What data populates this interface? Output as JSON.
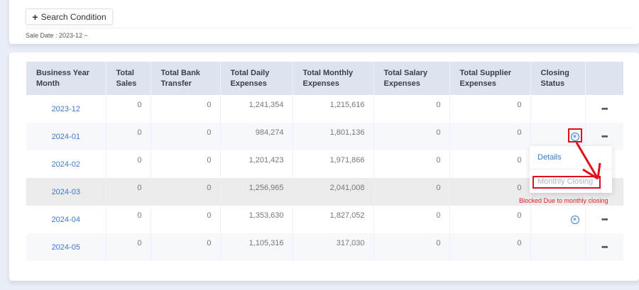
{
  "search": {
    "button_label": "Search Condition",
    "button_icon": "plus-icon",
    "filter_text": "Sale Date : 2023-12 ~"
  },
  "table": {
    "headers": [
      [
        "Business Year",
        "Month"
      ],
      [
        "Total",
        "Sales"
      ],
      [
        "Total Bank",
        "Transfer"
      ],
      [
        "Total Daily",
        "Expenses"
      ],
      [
        "Total Monthly",
        "Expenses"
      ],
      [
        "Total Salary",
        "Expenses"
      ],
      [
        "Total Supplier",
        "Expenses"
      ],
      [
        "Closing",
        "Status"
      ],
      [
        "",
        ""
      ]
    ],
    "rows": [
      {
        "month": "2023-12",
        "sales": "0",
        "bank": "0",
        "daily": "1,241,354",
        "monthly": "1,215,616",
        "salary": "0",
        "supplier": "0",
        "closed": false,
        "more": "•••"
      },
      {
        "month": "2024-01",
        "sales": "0",
        "bank": "0",
        "daily": "984,274",
        "monthly": "1,801,136",
        "salary": "0",
        "supplier": "0",
        "closed": true,
        "more": "•••"
      },
      {
        "month": "2024-02",
        "sales": "0",
        "bank": "0",
        "daily": "1,201,423",
        "monthly": "1,971,866",
        "salary": "0",
        "supplier": "0",
        "closed": false,
        "more": ""
      },
      {
        "month": "2024-03",
        "sales": "0",
        "bank": "0",
        "daily": "1,256,965",
        "monthly": "2,041,008",
        "salary": "0",
        "supplier": "0",
        "closed": false,
        "more": ""
      },
      {
        "month": "2024-04",
        "sales": "0",
        "bank": "0",
        "daily": "1,353,630",
        "monthly": "1,827,052",
        "salary": "0",
        "supplier": "0",
        "closed": true,
        "more": "•••"
      },
      {
        "month": "2024-05",
        "sales": "0",
        "bank": "0",
        "daily": "1,105,316",
        "monthly": "317,030",
        "salary": "0",
        "supplier": "0",
        "closed": false,
        "more": "•••"
      }
    ]
  },
  "dropdown": {
    "items": [
      "Details",
      "Monthly Closing"
    ]
  },
  "annotation": {
    "text": "Blocked Due to monthly closing",
    "color": "#e0101a"
  },
  "colors": {
    "link": "#3c7bc8",
    "header_bg": "#dde4f0"
  }
}
